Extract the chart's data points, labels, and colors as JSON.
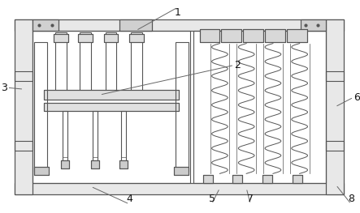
{
  "bg_color": "#ffffff",
  "line_color": "#555555",
  "lw": 0.8,
  "fig_w": 4.43,
  "fig_h": 2.63,
  "dpi": 100
}
